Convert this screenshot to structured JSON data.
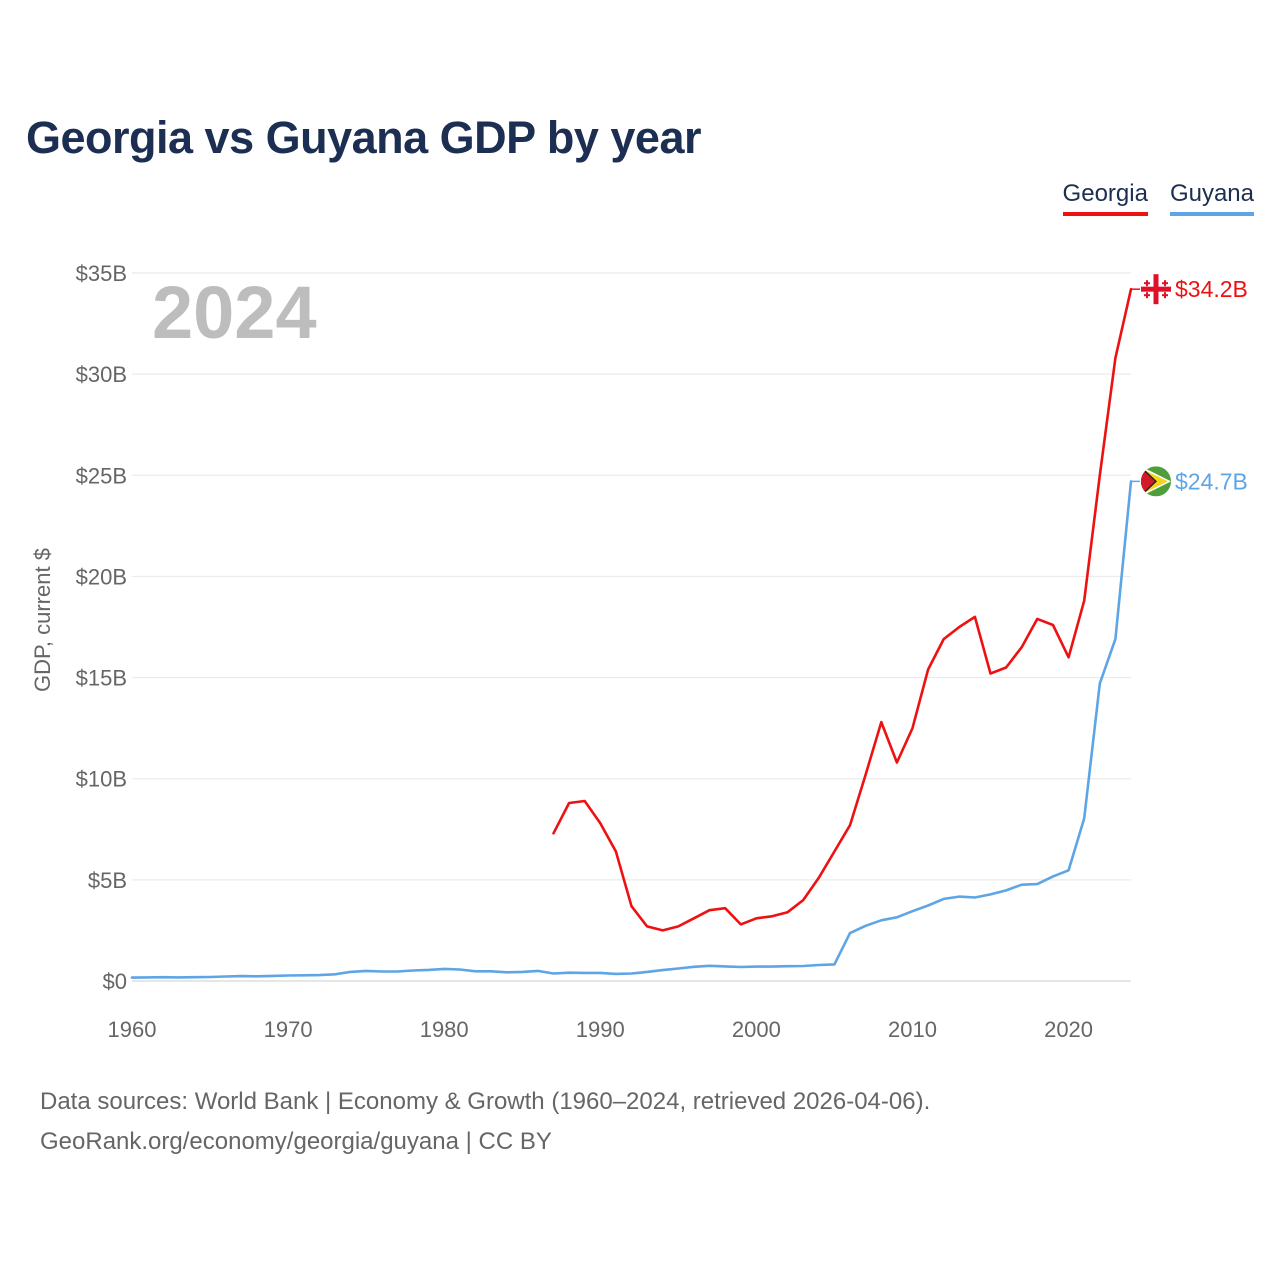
{
  "chart_data": {
    "type": "line",
    "title": "Georgia vs Guyana GDP by year",
    "ylabel": "GDP, current $",
    "xlabel": "",
    "year_label": "2024",
    "xlim": [
      1960,
      2024
    ],
    "ylim": [
      0,
      35
    ],
    "unit": "USD billions",
    "x_ticks": [
      1960,
      1970,
      1980,
      1990,
      2000,
      2010,
      2020
    ],
    "x_tick_labels": [
      "1960",
      "1970",
      "1980",
      "1990",
      "2000",
      "2010",
      "2020"
    ],
    "y_ticks": [
      0,
      5,
      10,
      15,
      20,
      25,
      30,
      35
    ],
    "y_tick_labels": [
      "$0",
      "$5B",
      "$10B",
      "$15B",
      "$20B",
      "$25B",
      "$30B",
      "$35B"
    ],
    "legend_position": "top-right",
    "series": [
      {
        "name": "Georgia",
        "color": "#ee1111",
        "end_label": "$34.2B",
        "flag_icon": "georgia-flag-icon",
        "x": [
          1987,
          1988,
          1989,
          1990,
          1991,
          1992,
          1993,
          1994,
          1995,
          1996,
          1997,
          1998,
          1999,
          2000,
          2001,
          2002,
          2003,
          2004,
          2005,
          2006,
          2007,
          2008,
          2009,
          2010,
          2011,
          2012,
          2013,
          2014,
          2015,
          2016,
          2017,
          2018,
          2019,
          2020,
          2021,
          2022,
          2023,
          2024
        ],
        "values": [
          7.3,
          8.8,
          8.9,
          7.8,
          6.4,
          3.7,
          2.7,
          2.5,
          2.7,
          3.1,
          3.5,
          3.6,
          2.8,
          3.1,
          3.2,
          3.4,
          4.0,
          5.1,
          6.4,
          7.7,
          10.2,
          12.8,
          10.8,
          12.5,
          15.4,
          16.9,
          17.5,
          18.0,
          15.2,
          15.5,
          16.5,
          17.9,
          17.6,
          16.0,
          18.8,
          25.0,
          30.8,
          34.2
        ]
      },
      {
        "name": "Guyana",
        "color": "#5ea5e6",
        "end_label": "$24.7B",
        "flag_icon": "guyana-flag-icon",
        "x": [
          1960,
          1961,
          1962,
          1963,
          1964,
          1965,
          1966,
          1967,
          1968,
          1969,
          1970,
          1971,
          1972,
          1973,
          1974,
          1975,
          1976,
          1977,
          1978,
          1979,
          1980,
          1981,
          1982,
          1983,
          1984,
          1985,
          1986,
          1987,
          1988,
          1989,
          1990,
          1991,
          1992,
          1993,
          1994,
          1995,
          1996,
          1997,
          1998,
          1999,
          2000,
          2001,
          2002,
          2003,
          2004,
          2005,
          2006,
          2007,
          2008,
          2009,
          2010,
          2011,
          2012,
          2013,
          2014,
          2015,
          2016,
          2017,
          2018,
          2019,
          2020,
          2021,
          2022,
          2023,
          2024
        ],
        "values": [
          0.17,
          0.18,
          0.19,
          0.18,
          0.19,
          0.2,
          0.22,
          0.24,
          0.23,
          0.25,
          0.27,
          0.28,
          0.29,
          0.33,
          0.45,
          0.5,
          0.47,
          0.47,
          0.52,
          0.55,
          0.6,
          0.57,
          0.48,
          0.48,
          0.43,
          0.45,
          0.5,
          0.37,
          0.41,
          0.4,
          0.4,
          0.35,
          0.37,
          0.45,
          0.54,
          0.62,
          0.7,
          0.75,
          0.72,
          0.69,
          0.71,
          0.71,
          0.73,
          0.74,
          0.79,
          0.82,
          2.37,
          2.73,
          3.0,
          3.15,
          3.45,
          3.73,
          4.06,
          4.17,
          4.13,
          4.28,
          4.48,
          4.76,
          4.79,
          5.17,
          5.47,
          8.04,
          14.7,
          16.9,
          24.7
        ]
      }
    ]
  },
  "footer": {
    "line1": "Data sources: World Bank | Economy & Growth (1960–2024, retrieved 2026-04-06).",
    "line2": "GeoRank.org/economy/georgia/guyana | CC BY"
  }
}
